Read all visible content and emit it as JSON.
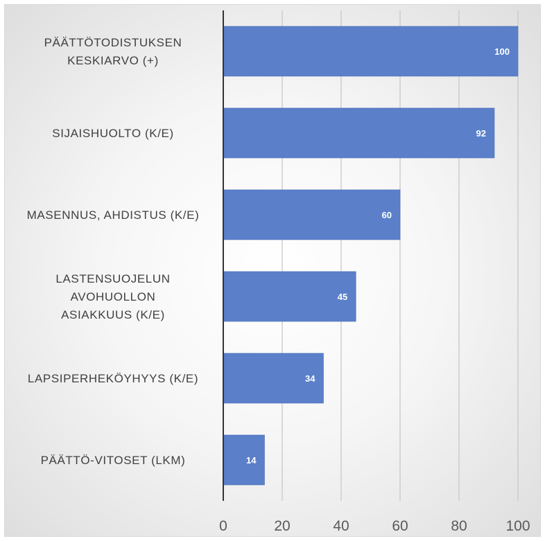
{
  "chart_data": {
    "type": "bar",
    "orientation": "horizontal",
    "categories": [
      "PÄÄTTÖTODISTUKSEN KESKIARVO (+)",
      "SIJAISHUOLTO (K/E)",
      "MASENNUS, AHDISTUS (K/E)",
      "LASTENSUOJELUN AVOHUOLLON ASIAKKUUS (K/E)",
      "LAPSIPERHEKÖYHYYS (K/E)",
      "PÄÄTTÖ-VITOSET (LKM)"
    ],
    "category_lines": [
      [
        "PÄÄTTÖTODISTUKSEN",
        "KESKIARVO (+)"
      ],
      [
        "SIJAISHUOLTO (K/E)"
      ],
      [
        "MASENNUS, AHDISTUS (K/E)"
      ],
      [
        "LASTENSUOJELUN",
        "AVOHUOLLON",
        "ASIAKKUUS (K/E)"
      ],
      [
        "LAPSIPERHEKÖYHYYS (K/E)"
      ],
      [
        "PÄÄTTÖ-VITOSET (LKM)"
      ]
    ],
    "values": [
      100,
      92,
      60,
      45,
      34,
      14
    ],
    "data_labels": [
      "100",
      "92",
      "60",
      "45",
      "34",
      "14"
    ],
    "xlim": [
      0,
      100
    ],
    "xticks": [
      0,
      20,
      40,
      60,
      80,
      100
    ],
    "xtick_labels": [
      "0",
      "20",
      "40",
      "60",
      "80",
      "100"
    ],
    "title": "",
    "xlabel": "",
    "ylabel": "",
    "grid": "vertical",
    "legend": "none",
    "colors": {
      "bar": "#5b80c9",
      "bar_border": "#4a6fb8",
      "grid": "#c8c8c8",
      "axis": "#333333",
      "data_label": "#ffffff"
    }
  }
}
